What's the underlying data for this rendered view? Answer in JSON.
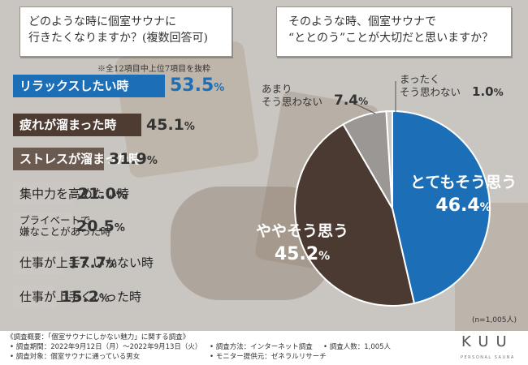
{
  "left_question": {
    "line1": "どのような時に個室サウナに",
    "line2": "行きたくなりますか？(複数回答可)",
    "note": "※全12項目中上位7項目を抜粋"
  },
  "right_question": {
    "line1": "そのような時、個室サウナで",
    "line2": "“ととのう”ことが大切だと思いますか？"
  },
  "sample_size": "(n=1,005人)",
  "footer": {
    "survey_title": "《調査概要：「個室サウナにしかない魅力」に関する調査》",
    "period": "• 調査期間：2022年9月12日（月）～2022年9月13日（火）",
    "target": "• 調査対象：個室サウナに通っている男女",
    "method": "• 調査方法：インターネット調査",
    "provider": "• モニター提供元：ゼネラルリサーチ",
    "respondents": "• 調査人数：1,005人",
    "brand": "KUU",
    "brand_sub": "PERSONAL SAUNA"
  },
  "colors": {
    "blue": "#1c6fb6",
    "dark_brown": "#4e3c33",
    "mid_brown": "#6b5a50",
    "gray": "#9b9795",
    "light_gray": "#cbc7c3",
    "pie_dark": "#4b3a31"
  },
  "chart_data": [
    {
      "type": "bar",
      "orientation": "horizontal",
      "categories": [
        "リラックスしたい時",
        "疲れが溜まった時",
        "ストレスが溜まった時",
        "集中力を高めたい時",
        "プライベートで嫌なことがあった時",
        "仕事が上手くいかない時",
        "仕事が上手くいった時"
      ],
      "category_lines": [
        [
          "リラックスしたい時"
        ],
        [
          "疲れが溜まった時"
        ],
        [
          "ストレスが溜まった時"
        ],
        [
          "集中力を高めたい時"
        ],
        [
          "プライベートで",
          "嫌なことがあった時"
        ],
        [
          "仕事が上手くいかない時"
        ],
        [
          "仕事が上手くいった時"
        ]
      ],
      "values": [
        53.5,
        45.1,
        31.9,
        21.0,
        20.5,
        17.7,
        15.2
      ],
      "value_labels": [
        [
          "53.5",
          "%"
        ],
        [
          "45.1",
          "%"
        ],
        [
          "31.9",
          "%"
        ],
        [
          "21.0",
          "%"
        ],
        [
          "20.5",
          "%"
        ],
        [
          "17.7",
          "%"
        ],
        [
          "15.2",
          "%"
        ]
      ]
    },
    {
      "type": "pie",
      "slices": [
        {
          "label": "とてもそう思う",
          "label_lines": [
            "とてもそう思う"
          ],
          "value": 46.4,
          "value_text": [
            "46.4",
            "%"
          ]
        },
        {
          "label": "ややそう思う",
          "label_lines": [
            "ややそう思う"
          ],
          "value": 45.2,
          "value_text": [
            "45.2",
            "%"
          ]
        },
        {
          "label": "あまりそう思わない",
          "label_lines": [
            "あまり",
            "そう思わない"
          ],
          "value": 7.4,
          "value_text": [
            "7.4",
            "%"
          ]
        },
        {
          "label": "まったくそう思わない",
          "label_lines": [
            "まったく",
            "そう思わない"
          ],
          "value": 1.0,
          "value_text": [
            "1.0",
            "%"
          ]
        }
      ]
    }
  ]
}
